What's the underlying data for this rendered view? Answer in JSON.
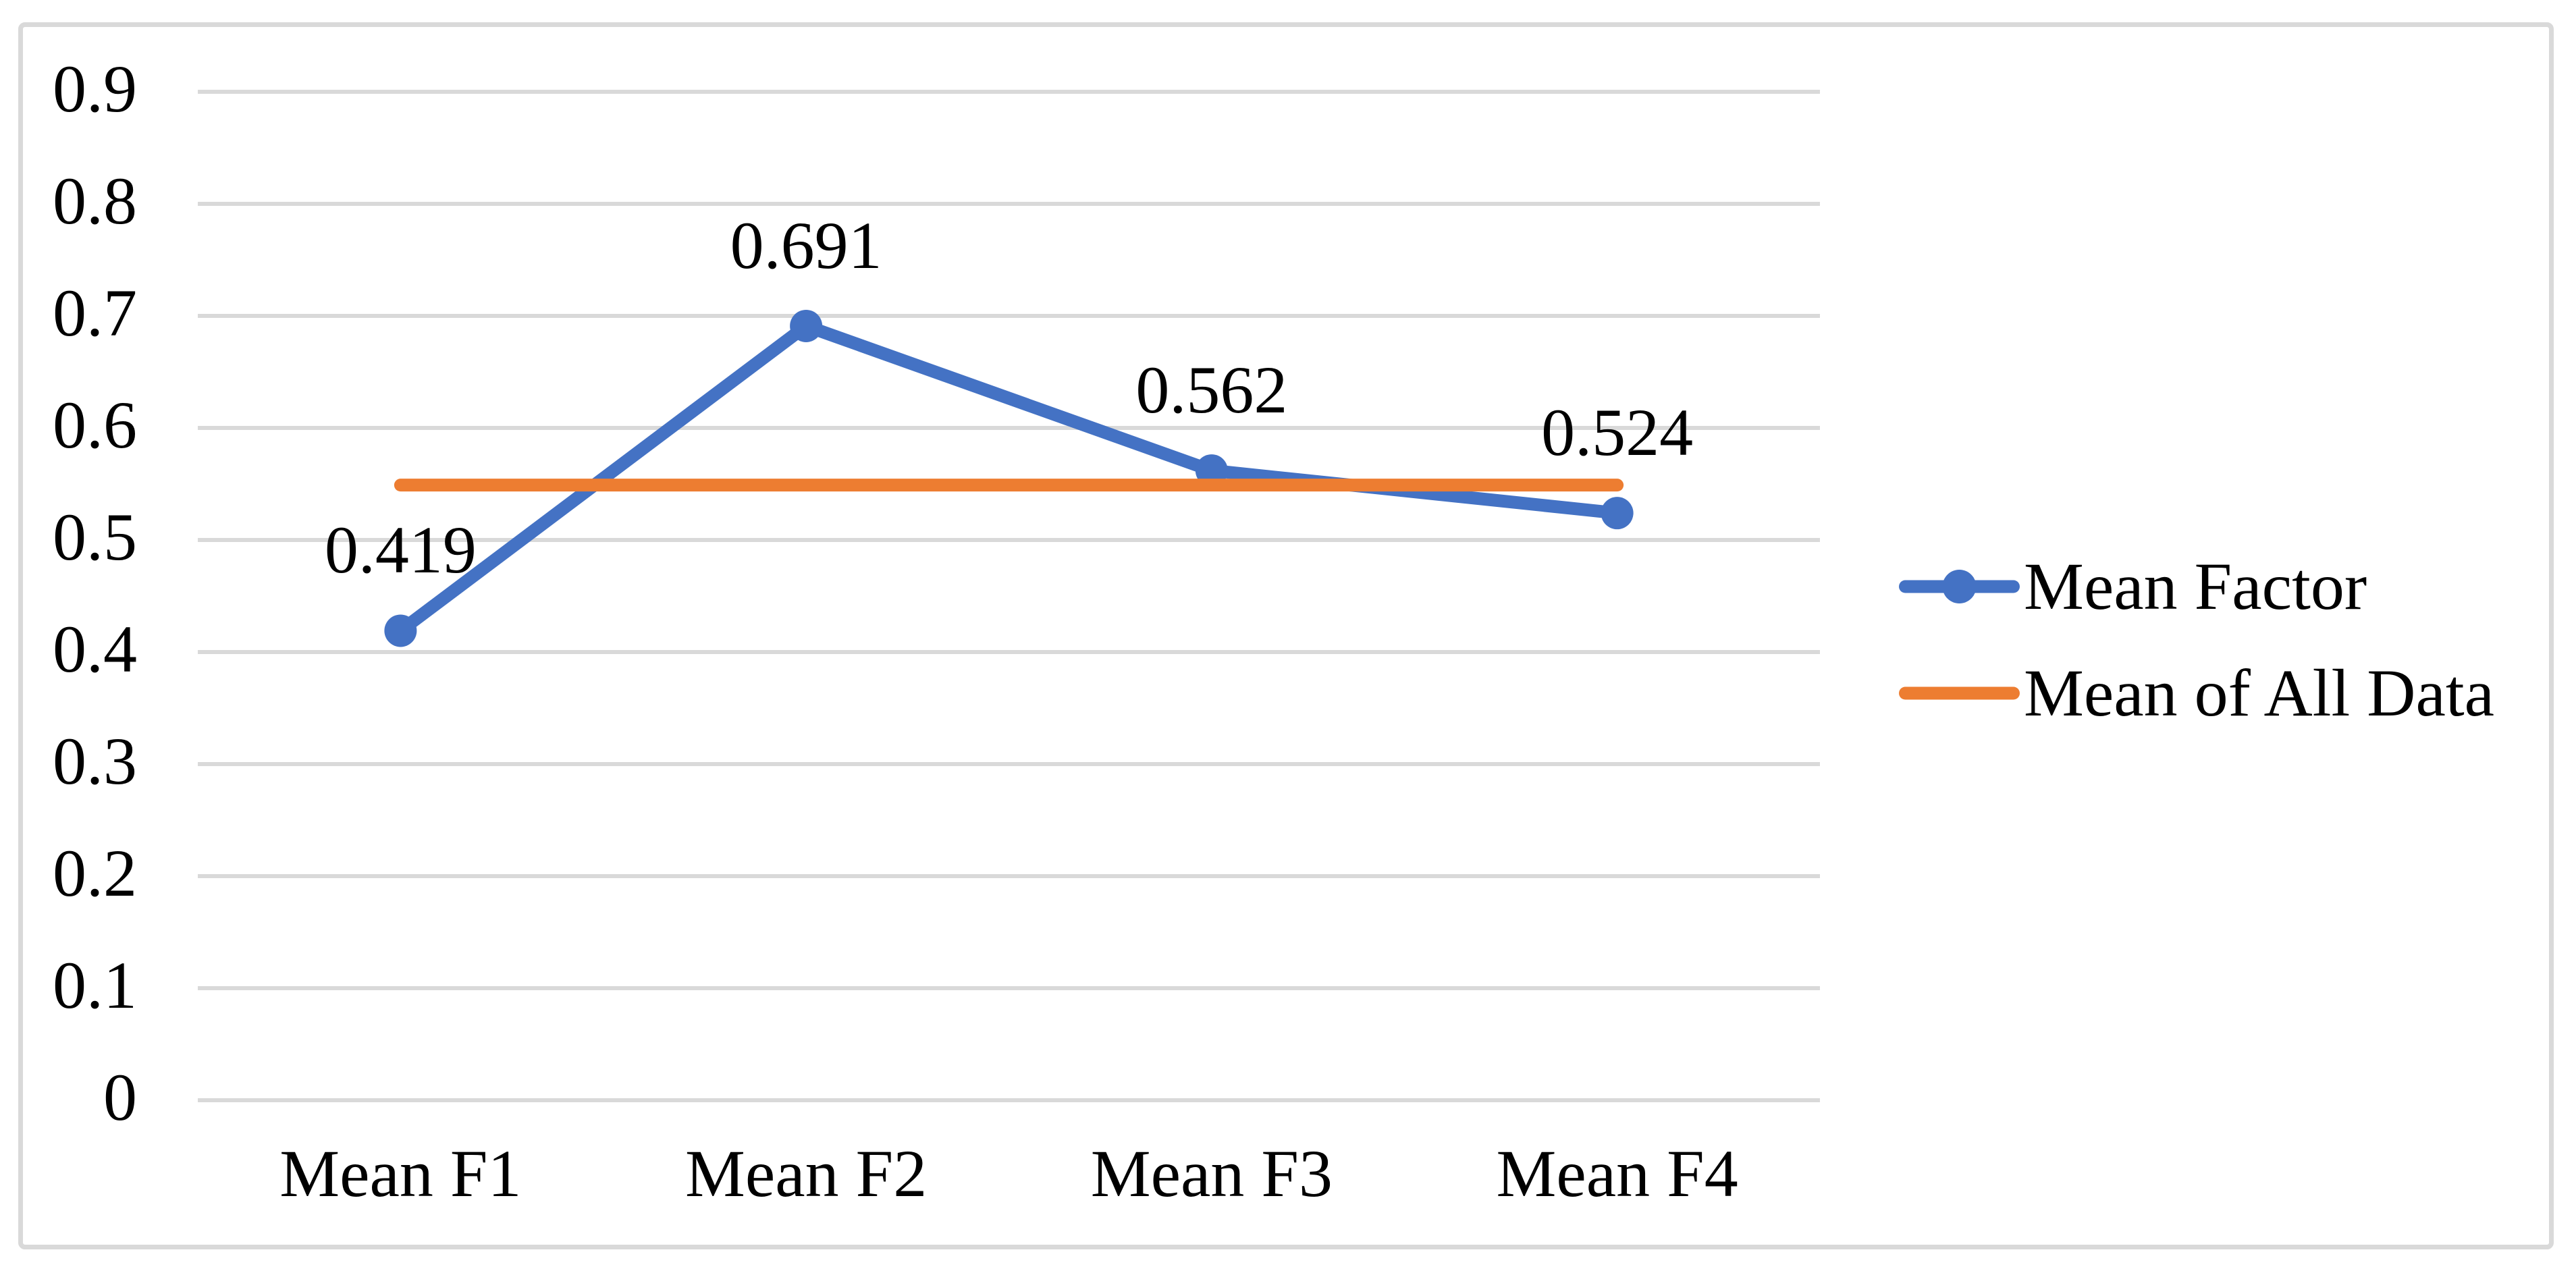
{
  "chart_data": {
    "type": "line",
    "title": "",
    "categories": [
      "Mean F1",
      "Mean F2",
      "Mean F3",
      "Mean F4"
    ],
    "series": [
      {
        "name": "Mean Factor",
        "values": [
          0.419,
          0.691,
          0.562,
          0.524
        ],
        "data_labels": [
          "0.419",
          "0.691",
          "0.562",
          "0.524"
        ],
        "color": "#4472C4",
        "marker": "circle"
      },
      {
        "name": "Mean of All Data",
        "values": [
          0.549,
          0.549,
          0.549,
          0.549
        ],
        "data_labels": [],
        "color": "#ED7D31",
        "marker": "none"
      }
    ],
    "y_axis": {
      "min": 0,
      "max": 0.9,
      "step": 0.1,
      "tick_labels": [
        "0.9",
        "0.8",
        "0.7",
        "0.6",
        "0.5",
        "0.4",
        "0.3",
        "0.2",
        "0.1",
        "0"
      ]
    },
    "x_axis": {
      "tick_labels": [
        "Mean F1",
        "Mean F2",
        "Mean F3",
        "Mean F4"
      ]
    },
    "grid": true,
    "legend_position": "right",
    "legend_entries": [
      {
        "label": "Mean Factor",
        "color": "#4472C4",
        "swatch": "line-with-circle-marker"
      },
      {
        "label": "Mean of All Data",
        "color": "#ED7D31",
        "swatch": "line"
      }
    ],
    "colors": {
      "series_blue": "#4472C4",
      "series_orange": "#ED7D31",
      "gridline": "#D9D9D9",
      "chart_border": "#D9D9D9",
      "text": "#000000",
      "background": "#FFFFFF"
    }
  }
}
